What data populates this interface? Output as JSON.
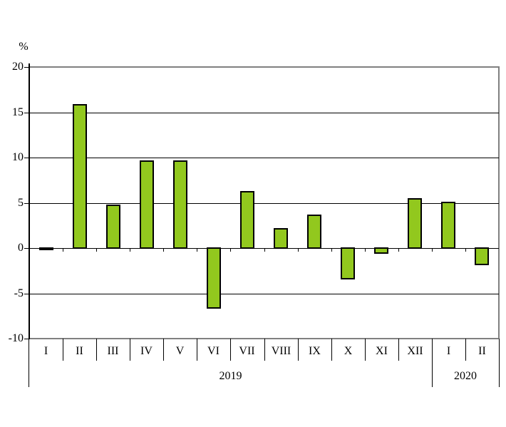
{
  "chart_data": {
    "type": "bar",
    "title": "",
    "ylabel": "%",
    "xlabel": "",
    "ylim": [
      -10,
      20
    ],
    "yticks": [
      20,
      15,
      10,
      5,
      0,
      -5,
      -10
    ],
    "categories": [
      "I",
      "II",
      "III",
      "IV",
      "V",
      "VI",
      "VII",
      "VIII",
      "IX",
      "X",
      "XI",
      "XII",
      "I",
      "II"
    ],
    "values": [
      0.1,
      15.9,
      4.8,
      9.7,
      9.7,
      -6.7,
      6.3,
      2.2,
      3.7,
      -3.5,
      -0.6,
      5.5,
      5.1,
      -1.9
    ],
    "year_groups": [
      {
        "label": "2019",
        "span": 12
      },
      {
        "label": "2020",
        "span": 2
      }
    ],
    "legend_position": "none",
    "grid": true,
    "colors": {
      "bar_fill": "#92C81E",
      "bar_border": "#000000",
      "gridline": "#000000",
      "frame": "#808080",
      "axis": "#000000",
      "text": "#000000",
      "background": "#FFFFFF"
    }
  }
}
